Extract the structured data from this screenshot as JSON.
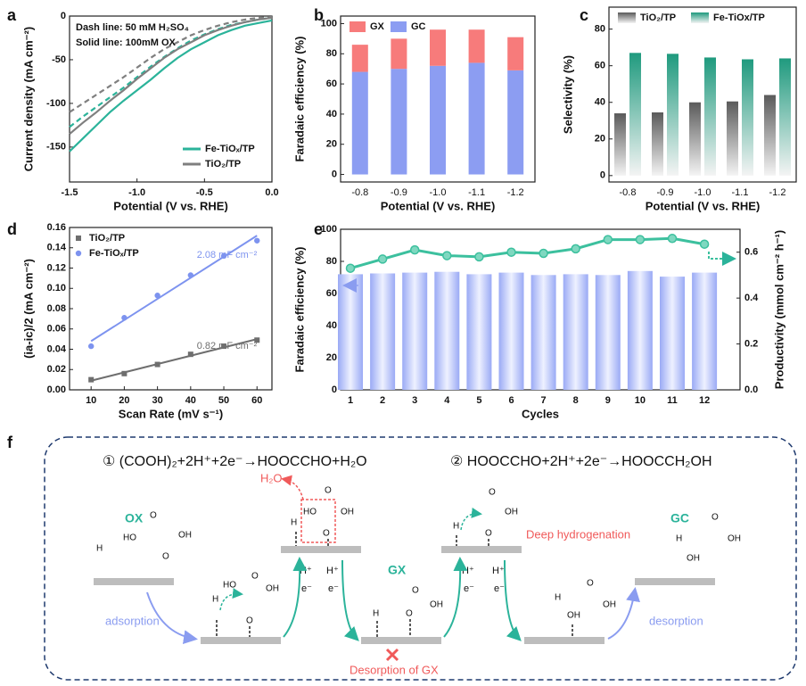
{
  "chart_data": [
    {
      "type": "line",
      "panel_label": "a",
      "x": [
        -1.5,
        -1.4,
        -1.3,
        -1.2,
        -1.1,
        -1,
        -0.9,
        -0.8,
        -0.7,
        -0.6,
        -0.5,
        -0.4,
        -0.3,
        -0.2,
        -0.1,
        0
      ],
      "xlabel": "Potential (V vs. RHE)",
      "ylabel": "Current density (mA cm⁻²)",
      "xlim": [
        -1.5,
        0
      ],
      "ylim": [
        -190,
        0
      ],
      "xticks": [
        -1.5,
        {
          "value": -1,
          "label": "-1.0"
        },
        -0.5,
        {
          "value": 0,
          "label": "0.0"
        }
      ],
      "yticks": [
        -150,
        -100,
        -50,
        0
      ],
      "annotations": [
        "Dash line: 50 mM H₂SO₄",
        "Solid line: 100mM OX"
      ],
      "legend": "lower right",
      "series": [
        {
          "name": "Fe-TiOₓ/TP",
          "color": "#2bb39a",
          "values": [
            -155,
            -140,
            -125,
            -110,
            -97,
            -85,
            -73,
            -60,
            -48,
            -38,
            -30,
            -22,
            -16,
            -11,
            -8,
            -5
          ],
          "dash_values": [
            -127,
            -115,
            -104,
            -93,
            -82,
            -70,
            -58,
            -47,
            -37,
            -28,
            -21,
            -15,
            -10,
            -7,
            -4,
            -2
          ]
        },
        {
          "name": "TiO₂/TP",
          "color": "#7f7f7f",
          "values": [
            -135,
            -122,
            -110,
            -97,
            -85,
            -72,
            -60,
            -48,
            -38,
            -30,
            -22,
            -16,
            -11,
            -7,
            -4,
            -2
          ],
          "dash_values": [
            -110,
            -100,
            -90,
            -80,
            -70,
            -59,
            -48,
            -38,
            -30,
            -22,
            -16,
            -11,
            -7,
            -4,
            -2,
            -1
          ]
        }
      ]
    },
    {
      "type": "stacked_bar",
      "panel_label": "b",
      "categories": [
        "-0.8",
        "-0.9",
        "-1.0",
        "-1.1",
        "-1.2"
      ],
      "xlabel": "Potential (V vs. RHE)",
      "ylabel": "Faradaic efficiency (%)",
      "ylim": [
        -5,
        105
      ],
      "yticks": [
        0,
        20,
        40,
        60,
        80,
        100
      ],
      "legend": "upper left",
      "series": [
        {
          "name": "GX",
          "color": "#f77b7b",
          "values": [
            18,
            20,
            24,
            22,
            22
          ]
        },
        {
          "name": "GC",
          "color": "#8c9df2",
          "values": [
            68,
            70,
            72,
            74,
            69
          ]
        }
      ]
    },
    {
      "type": "bar",
      "panel_label": "c",
      "categories": [
        "-0.8",
        "-0.9",
        "-1.0",
        "-1.1",
        "-1.2"
      ],
      "xlabel": "Potential (V vs. RHE)",
      "ylabel": "Selectivity (%)",
      "ylim": [
        -3.5,
        92
      ],
      "yticks": [
        0,
        20,
        40,
        60,
        80
      ],
      "legend": "upper left",
      "series": [
        {
          "name": "TiO₂/TP",
          "color": "#5a5a5a",
          "values": [
            34,
            34.5,
            40,
            40.5,
            44
          ]
        },
        {
          "name": "Fe-TiOx/TP",
          "color": "#1f9a7e",
          "values": [
            67,
            66.5,
            64.5,
            63.5,
            64
          ]
        }
      ]
    },
    {
      "type": "scatter",
      "panel_label": "d",
      "x": [
        10,
        20,
        30,
        40,
        50,
        60
      ],
      "xlabel": "Scan Rate (mV s⁻¹)",
      "ylabel": "(ia-ic)/2 (mA cm⁻²)",
      "xlim": [
        3.5,
        64.5
      ],
      "ylim": [
        0,
        0.16
      ],
      "xticks": [
        10,
        20,
        30,
        40,
        50,
        60
      ],
      "yticks": [
        {
          "value": 0,
          "label": "0.00"
        },
        0.02,
        0.04,
        0.06,
        0.08,
        {
          "value": 0.1,
          "label": "0.10"
        },
        0.12,
        0.14,
        0.16
      ],
      "legend": "upper left",
      "fit_x": [
        10,
        60
      ],
      "series": [
        {
          "name": "TiO₂/TP",
          "color": "#6e6e6e",
          "marker": "square",
          "values": [
            0.01,
            0.016,
            0.025,
            0.035,
            0.043,
            0.049
          ],
          "fit": [
            0.009,
            0.05
          ],
          "slope_label": "0.82 mF cm⁻²"
        },
        {
          "name": "Fe-TiOₓ/TP",
          "color": "#7d93ef",
          "marker": "circle",
          "values": [
            0.043,
            0.071,
            0.093,
            0.113,
            0.132,
            0.147
          ],
          "fit": [
            0.048,
            0.152
          ],
          "slope_label": "2.08 mF cm⁻²"
        }
      ]
    },
    {
      "type": "combo",
      "panel_label": "e",
      "categories": [
        "1",
        "2",
        "3",
        "4",
        "5",
        "6",
        "7",
        "8",
        "9",
        "10",
        "11",
        "12"
      ],
      "xlabel": "Cycles",
      "ylabel": "Faradaic efficiency (%)",
      "y2label": "Productivity (mmol cm⁻² h⁻¹)",
      "ylim": [
        0,
        100
      ],
      "yticks": [
        0,
        20,
        40,
        60,
        80,
        100
      ],
      "y2lim": [
        0,
        0.7
      ],
      "y2ticks": [
        {
          "value": 0,
          "label": "0.0"
        },
        0.2,
        0.4,
        0.6
      ],
      "series": [
        {
          "color": "#9aaaf5",
          "values": [
            72,
            72.5,
            73,
            73.5,
            72,
            73,
            71.5,
            72,
            71.5,
            74,
            70.5,
            73
          ]
        },
        {
          "color": "#3cc09e",
          "axis": "y2",
          "values": [
            0.53,
            0.57,
            0.61,
            0.585,
            0.58,
            0.6,
            0.595,
            0.615,
            0.655,
            0.655,
            0.66,
            0.635
          ]
        }
      ]
    }
  ],
  "scheme": {
    "panel_label": "f",
    "equation_1": "① (COOH)₂+2H⁺+2e⁻→HOOCCHO+H₂O",
    "equation_2": "② HOOCCHO+2H⁺+2e⁻→HOOCCH₂OH",
    "species": [
      "OX",
      "GX",
      "GC"
    ],
    "byproduct": "H₂O",
    "deep_hydrogenation": "Deep hydrogenation",
    "adsorption": "adsorption",
    "desorption": "desorption",
    "blocked": "Desorption of GX",
    "proton": "H⁺",
    "electron": "e⁻",
    "atoms": [
      "H",
      "HO",
      "O",
      "O",
      "OH",
      "H",
      "HO",
      "O",
      "O",
      "OH",
      "H",
      "HO",
      "O",
      "O",
      "OH",
      "H",
      "O",
      "O",
      "OH",
      "H",
      "O",
      "O",
      "OH",
      "H",
      "OH",
      "O",
      "OH",
      "H",
      "OH",
      "O",
      "OH"
    ]
  }
}
